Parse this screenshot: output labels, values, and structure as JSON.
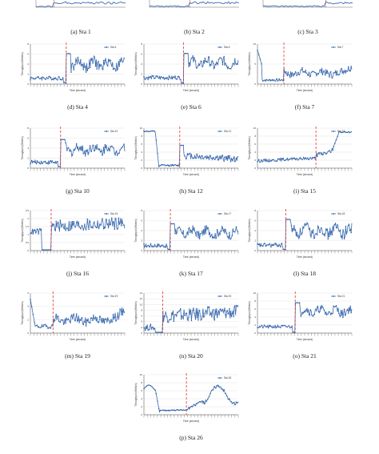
{
  "colors": {
    "series": "#3a6bb0",
    "marker": "#2f5fa6",
    "switch_line": "#e0322b",
    "grid": "#d4d4d4",
    "axis": "#444444"
  },
  "figure": {
    "top_row_captions": [
      "(a) Sta 1",
      "(b) Sta 2",
      "(c) Sta 3"
    ]
  },
  "chart_data": [
    {
      "type": "line",
      "caption": "(d) Sta 4",
      "legend": "Sta 4",
      "ylabel": "Throughput (Mbits/s)",
      "xlabel": "Time (second)",
      "ylim": [
        0,
        8
      ],
      "yticks": [
        0,
        2,
        4,
        6,
        8
      ],
      "switch_at": 0.38,
      "profile": "low_then_high",
      "pre_level": 1.2,
      "post_level": 4.0,
      "amp": 1.3,
      "seed": 4
    },
    {
      "type": "line",
      "caption": "(e) Sta 6",
      "legend": "Sta 6",
      "ylabel": "Throughput (Mbits/s)",
      "xlabel": "Time (second)",
      "ylim": [
        0,
        8
      ],
      "yticks": [
        0,
        2,
        4,
        6,
        8
      ],
      "switch_at": 0.42,
      "profile": "low_then_high",
      "pre_level": 1.3,
      "post_level": 4.2,
      "amp": 1.2,
      "seed": 6
    },
    {
      "type": "line",
      "caption": "(f) Sta 7",
      "legend": "Sta 7",
      "ylabel": "Throughput (Mbits/s)",
      "xlabel": "Time (second)",
      "ylim": [
        0,
        10
      ],
      "yticks": [
        0,
        5,
        10
      ],
      "switch_at": 0.28,
      "profile": "spike_then_mid",
      "pre_level": 1.0,
      "post_level": 2.8,
      "amp": 0.9,
      "seed": 7
    },
    {
      "type": "line",
      "caption": "(g) Sta 10",
      "legend": "Sta 10",
      "ylabel": "Throughput (Mbits/s)",
      "xlabel": "Time (second)",
      "ylim": [
        0,
        8
      ],
      "yticks": [
        0,
        2,
        4,
        6,
        8
      ],
      "switch_at": 0.32,
      "profile": "low_then_high",
      "pre_level": 1.2,
      "post_level": 3.8,
      "amp": 1.2,
      "seed": 10
    },
    {
      "type": "line",
      "caption": "(h) Sta 12",
      "legend": "Sta 12",
      "ylabel": "Throughput (Mbits/s)",
      "xlabel": "Time (second)",
      "ylim": [
        0,
        10
      ],
      "yticks": [
        0,
        2,
        4,
        6,
        8,
        10
      ],
      "switch_at": 0.38,
      "profile": "high_drop_mid",
      "pre_level": 9.2,
      "post_level": 3.2,
      "amp": 0.8,
      "seed": 12
    },
    {
      "type": "line",
      "caption": "(i) Sta 15",
      "legend": "Sta 15",
      "ylabel": "Throughput (Mbits/s)",
      "xlabel": "Time (second)",
      "ylim": [
        0,
        10
      ],
      "yticks": [
        0,
        2,
        4,
        6,
        8,
        10
      ],
      "switch_at": 0.62,
      "profile": "rise_to_high",
      "pre_level": 1.8,
      "post_level": 9.0,
      "amp": 0.6,
      "seed": 15
    },
    {
      "type": "line",
      "caption": "(j) Sta 16",
      "legend": "Sta 16",
      "ylabel": "Throughput (Mbits/s)",
      "xlabel": "Time (second)",
      "ylim": [
        0,
        2.5
      ],
      "yticks": [
        0,
        0.5,
        1,
        1.5,
        2,
        2.5
      ],
      "switch_at": 0.22,
      "profile": "dip_then_high",
      "pre_level": 1.2,
      "post_level": 1.5,
      "amp": 0.35,
      "seed": 16
    },
    {
      "type": "line",
      "caption": "(k) Sta 17",
      "legend": "Sta 17",
      "ylabel": "Throughput (Mbits/s)",
      "xlabel": "Time (second)",
      "ylim": [
        0,
        8
      ],
      "yticks": [
        0,
        2,
        4,
        6,
        8
      ],
      "switch_at": 0.28,
      "profile": "low_then_high",
      "pre_level": 1.0,
      "post_level": 3.6,
      "amp": 1.1,
      "seed": 17
    },
    {
      "type": "line",
      "caption": "(l) Sta 18",
      "legend": "Sta 18",
      "ylabel": "Throughput (Mbits/s)",
      "xlabel": "Time (second)",
      "ylim": [
        0,
        8
      ],
      "yticks": [
        0,
        2,
        4,
        6,
        8
      ],
      "switch_at": 0.3,
      "profile": "low_then_high",
      "pre_level": 1.1,
      "post_level": 4.0,
      "amp": 1.4,
      "seed": 18
    },
    {
      "type": "line",
      "caption": "(m) Sta 19",
      "legend": "Sta 19",
      "ylabel": "Throughput (Mbits/s)",
      "xlabel": "Time (second)",
      "ylim": [
        0,
        6
      ],
      "yticks": [
        0,
        2,
        4,
        6
      ],
      "switch_at": 0.24,
      "profile": "spike_then_mid",
      "pre_level": 1.0,
      "post_level": 2.0,
      "amp": 0.7,
      "seed": 19
    },
    {
      "type": "line",
      "caption": "(n) Sta 20",
      "legend": "Sta 20",
      "ylabel": "Throughput (Mbits/s)",
      "xlabel": "Time (second)",
      "ylim": [
        0,
        14
      ],
      "yticks": [
        0,
        2,
        4,
        6,
        8,
        10,
        12,
        14
      ],
      "switch_at": 0.2,
      "profile": "dip_then_high",
      "pre_level": 2.0,
      "post_level": 6.0,
      "amp": 2.2,
      "seed": 20
    },
    {
      "type": "line",
      "caption": "(o) Sta 21",
      "legend": "Sta 21",
      "ylabel": "Throughput (Mbits/s)",
      "xlabel": "Time (second)",
      "ylim": [
        0,
        10
      ],
      "yticks": [
        0,
        2,
        4,
        6,
        8,
        10
      ],
      "switch_at": 0.4,
      "profile": "low_then_high",
      "pre_level": 1.6,
      "post_level": 5.5,
      "amp": 1.3,
      "seed": 21
    },
    {
      "type": "line",
      "caption": "(p) Sta 26",
      "legend": "Sta 26",
      "ylabel": "Throughput (Mbits/s)",
      "xlabel": "Time (second)",
      "ylim": [
        0,
        10
      ],
      "yticks": [
        0,
        2,
        4,
        6,
        8,
        10
      ],
      "switch_at": 0.45,
      "profile": "wave_dip_wave",
      "pre_level": 6.5,
      "post_level": 5.0,
      "amp": 1.5,
      "seed": 26
    }
  ]
}
